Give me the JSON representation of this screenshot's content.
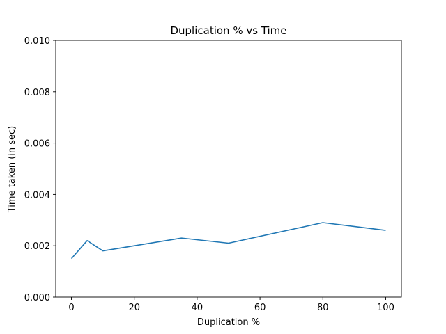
{
  "chart_data": {
    "type": "line",
    "title": "Duplication % vs Time",
    "xlabel": "Duplication %",
    "ylabel": "Time taken (in sec)",
    "xlim": [
      -5,
      105
    ],
    "ylim": [
      0.0,
      0.01
    ],
    "xticks": [
      0,
      20,
      40,
      60,
      80,
      100
    ],
    "xtick_labels": [
      "0",
      "20",
      "40",
      "60",
      "80",
      "100"
    ],
    "yticks": [
      0.0,
      0.002,
      0.004,
      0.006,
      0.008,
      0.01
    ],
    "ytick_labels": [
      "0.000",
      "0.002",
      "0.004",
      "0.006",
      "0.008",
      "0.010"
    ],
    "grid": false,
    "series": [
      {
        "color": "#1f77b4",
        "x": [
          0,
          5,
          10,
          35,
          50,
          80,
          100
        ],
        "y": [
          0.0015,
          0.0022,
          0.0018,
          0.0023,
          0.0021,
          0.0029,
          0.0026
        ]
      }
    ]
  }
}
